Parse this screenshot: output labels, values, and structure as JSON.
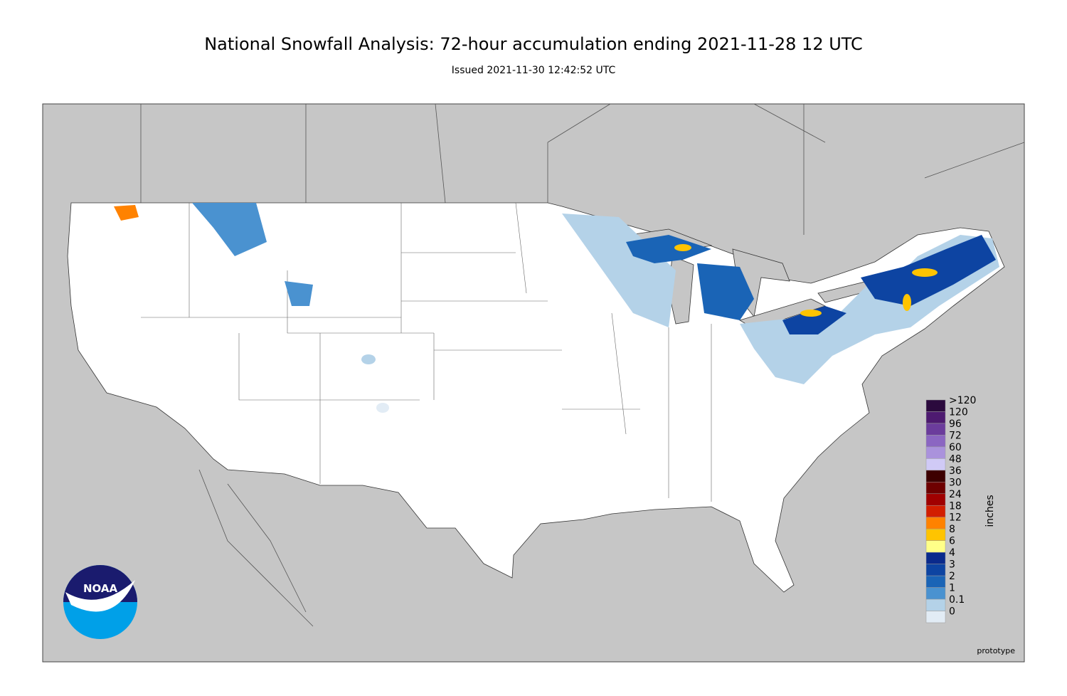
{
  "title": "National Snowfall Analysis: 72-hour accumulation ending 2021-11-28 12 UTC",
  "subtitle": "Issued 2021-11-30 12:42:52 UTC",
  "legend": {
    "title": "inches",
    "items": [
      {
        "label": ">120",
        "color": "#2b0a3d"
      },
      {
        "label": "120",
        "color": "#4d1a70"
      },
      {
        "label": "96",
        "color": "#6b3c9c"
      },
      {
        "label": "72",
        "color": "#8b66c2"
      },
      {
        "label": "60",
        "color": "#aa92dc"
      },
      {
        "label": "48",
        "color": "#d0caf6"
      },
      {
        "label": "36",
        "color": "#3d0000"
      },
      {
        "label": "30",
        "color": "#6e0000"
      },
      {
        "label": "24",
        "color": "#a00000"
      },
      {
        "label": "18",
        "color": "#d21e00"
      },
      {
        "label": "12",
        "color": "#ff8200"
      },
      {
        "label": "8",
        "color": "#ffc400"
      },
      {
        "label": "6",
        "color": "#ffff88"
      },
      {
        "label": "4",
        "color": "#0a2a8c"
      },
      {
        "label": "3",
        "color": "#0d44a2"
      },
      {
        "label": "2",
        "color": "#1a64b6"
      },
      {
        "label": "1",
        "color": "#4a92d0"
      },
      {
        "label": "0.1",
        "color": "#b4d2e8"
      },
      {
        "label": "0",
        "color": "#e2ecf5"
      }
    ]
  },
  "note": "prototype",
  "logo": "NOAA"
}
